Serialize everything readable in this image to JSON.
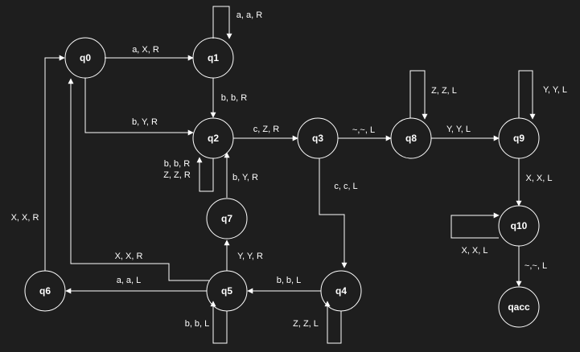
{
  "diagram": {
    "background": "#1e1e1e",
    "stroke": "#ffffff",
    "states": {
      "q0": "q0",
      "q1": "q1",
      "q2": "q2",
      "q3": "q3",
      "q4": "q4",
      "q5": "q5",
      "q6": "q6",
      "q7": "q7",
      "q8": "q8",
      "q9": "q9",
      "q10": "q10",
      "qacc": "qacc"
    },
    "transitions": {
      "q1_loop": "a, a, R",
      "q0_q1": "a, X, R",
      "q1_q2": "b, b, R",
      "q0_q2": "b, Y, R",
      "q2_q3": "c, Z, R",
      "q3_q8": "~,~, L",
      "q8_loop": "Z, Z, L",
      "q8_q9": "Y, Y, L",
      "q9_loop": "Y, Y, L",
      "q2_loop_a": "b, b, R",
      "q2_loop_b": "Z, Z, R",
      "q7_q2": "b, Y, R",
      "q3_q4": "c, c, L",
      "q9_q10": "X, X, L",
      "q6_q0": "X, X, R",
      "q10_loop": "X, X, L",
      "q10_qacc": "~,~, L",
      "q5_q0": "X, X, R",
      "q5_q7": "Y, Y, R",
      "q5_q6": "a, a, L",
      "q4_q5": "b, b, L",
      "q5_loop": "b, b, L",
      "q4_loop": "Z, Z, L"
    }
  }
}
